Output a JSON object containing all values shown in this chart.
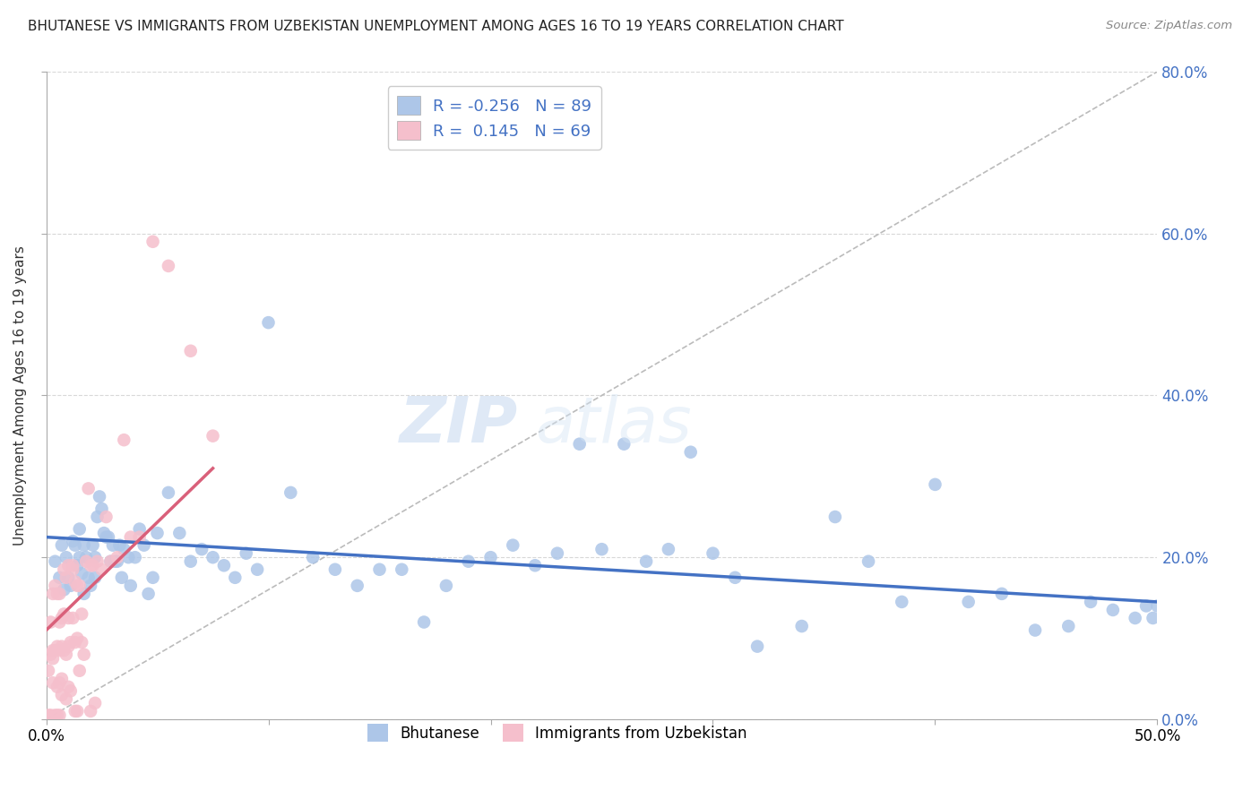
{
  "title": "BHUTANESE VS IMMIGRANTS FROM UZBEKISTAN UNEMPLOYMENT AMONG AGES 16 TO 19 YEARS CORRELATION CHART",
  "source": "Source: ZipAtlas.com",
  "ylabel": "Unemployment Among Ages 16 to 19 years",
  "xlim": [
    0,
    0.5
  ],
  "ylim": [
    0,
    0.8
  ],
  "blue_R": -0.256,
  "blue_N": 89,
  "pink_R": 0.145,
  "pink_N": 69,
  "blue_color": "#adc6e8",
  "pink_color": "#f5bfcc",
  "blue_line_color": "#4472c4",
  "pink_line_color": "#d9607a",
  "diag_line_color": "#bbbbbb",
  "legend_label_blue": "Bhutanese",
  "legend_label_pink": "Immigrants from Uzbekistan",
  "watermark_zip": "ZIP",
  "watermark_atlas": "atlas",
  "blue_scatter_x": [
    0.004,
    0.006,
    0.007,
    0.008,
    0.009,
    0.01,
    0.011,
    0.012,
    0.013,
    0.014,
    0.015,
    0.015,
    0.016,
    0.017,
    0.017,
    0.018,
    0.019,
    0.02,
    0.021,
    0.022,
    0.022,
    0.023,
    0.024,
    0.025,
    0.026,
    0.027,
    0.028,
    0.029,
    0.03,
    0.031,
    0.032,
    0.033,
    0.034,
    0.035,
    0.037,
    0.038,
    0.04,
    0.042,
    0.044,
    0.046,
    0.048,
    0.05,
    0.055,
    0.06,
    0.065,
    0.07,
    0.075,
    0.08,
    0.085,
    0.09,
    0.095,
    0.1,
    0.11,
    0.12,
    0.13,
    0.14,
    0.15,
    0.16,
    0.17,
    0.18,
    0.19,
    0.2,
    0.21,
    0.22,
    0.23,
    0.24,
    0.25,
    0.26,
    0.27,
    0.28,
    0.29,
    0.3,
    0.31,
    0.32,
    0.34,
    0.355,
    0.37,
    0.385,
    0.4,
    0.415,
    0.43,
    0.445,
    0.46,
    0.47,
    0.48,
    0.49,
    0.495,
    0.498,
    0.5
  ],
  "blue_scatter_y": [
    0.195,
    0.175,
    0.215,
    0.16,
    0.2,
    0.175,
    0.165,
    0.22,
    0.215,
    0.19,
    0.2,
    0.235,
    0.18,
    0.155,
    0.215,
    0.2,
    0.175,
    0.165,
    0.215,
    0.2,
    0.175,
    0.25,
    0.275,
    0.26,
    0.23,
    0.225,
    0.225,
    0.195,
    0.215,
    0.195,
    0.195,
    0.215,
    0.175,
    0.21,
    0.2,
    0.165,
    0.2,
    0.235,
    0.215,
    0.155,
    0.175,
    0.23,
    0.28,
    0.23,
    0.195,
    0.21,
    0.2,
    0.19,
    0.175,
    0.205,
    0.185,
    0.49,
    0.28,
    0.2,
    0.185,
    0.165,
    0.185,
    0.185,
    0.12,
    0.165,
    0.195,
    0.2,
    0.215,
    0.19,
    0.205,
    0.34,
    0.21,
    0.34,
    0.195,
    0.21,
    0.33,
    0.205,
    0.175,
    0.09,
    0.115,
    0.25,
    0.195,
    0.145,
    0.29,
    0.145,
    0.155,
    0.11,
    0.115,
    0.145,
    0.135,
    0.125,
    0.14,
    0.125,
    0.14
  ],
  "pink_scatter_x": [
    0.001,
    0.001,
    0.002,
    0.002,
    0.002,
    0.003,
    0.003,
    0.003,
    0.003,
    0.004,
    0.004,
    0.004,
    0.005,
    0.005,
    0.005,
    0.005,
    0.006,
    0.006,
    0.006,
    0.006,
    0.006,
    0.007,
    0.007,
    0.007,
    0.007,
    0.008,
    0.008,
    0.008,
    0.009,
    0.009,
    0.009,
    0.01,
    0.01,
    0.01,
    0.01,
    0.011,
    0.011,
    0.012,
    0.012,
    0.012,
    0.013,
    0.013,
    0.013,
    0.014,
    0.014,
    0.014,
    0.015,
    0.015,
    0.016,
    0.016,
    0.017,
    0.018,
    0.019,
    0.02,
    0.02,
    0.021,
    0.022,
    0.023,
    0.025,
    0.027,
    0.029,
    0.032,
    0.035,
    0.038,
    0.042,
    0.048,
    0.055,
    0.065,
    0.075
  ],
  "pink_scatter_y": [
    0.06,
    0.005,
    0.12,
    0.005,
    0.08,
    0.075,
    0.085,
    0.155,
    0.045,
    0.005,
    0.085,
    0.165,
    0.005,
    0.04,
    0.09,
    0.155,
    0.005,
    0.045,
    0.085,
    0.12,
    0.155,
    0.05,
    0.09,
    0.125,
    0.03,
    0.085,
    0.13,
    0.185,
    0.025,
    0.08,
    0.175,
    0.04,
    0.09,
    0.125,
    0.19,
    0.035,
    0.095,
    0.125,
    0.185,
    0.19,
    0.01,
    0.095,
    0.17,
    0.01,
    0.1,
    0.165,
    0.165,
    0.06,
    0.095,
    0.13,
    0.08,
    0.195,
    0.285,
    0.19,
    0.01,
    0.19,
    0.02,
    0.195,
    0.185,
    0.25,
    0.195,
    0.2,
    0.345,
    0.225,
    0.225,
    0.59,
    0.56,
    0.455,
    0.35
  ],
  "blue_line_x0": 0.0,
  "blue_line_y0": 0.225,
  "blue_line_x1": 0.5,
  "blue_line_y1": 0.145,
  "pink_line_x0": 0.0,
  "pink_line_y0": 0.11,
  "pink_line_x1": 0.075,
  "pink_line_y1": 0.31
}
